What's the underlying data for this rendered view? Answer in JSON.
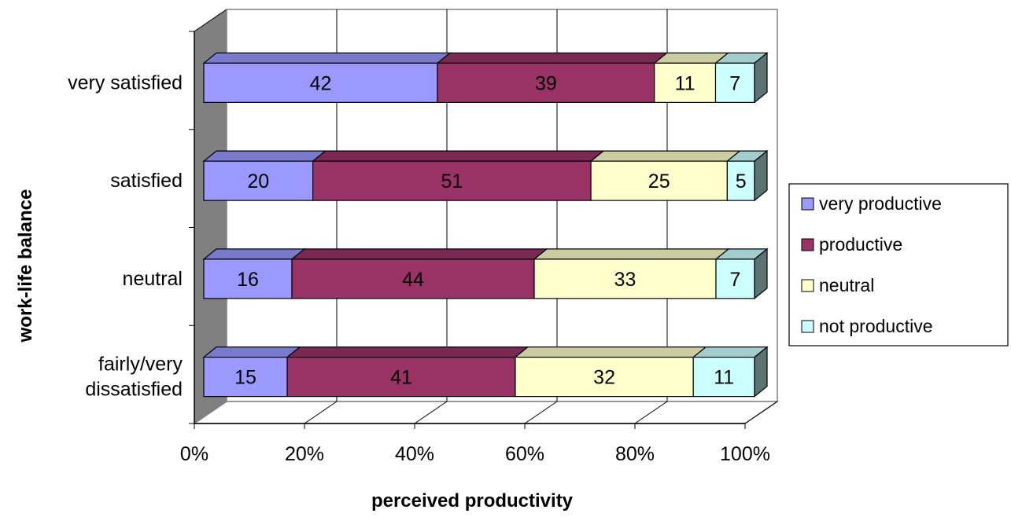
{
  "chart_data": {
    "type": "bar",
    "orientation": "horizontal",
    "stacking": "percent",
    "three_d": true,
    "xlabel": "perceived productivity",
    "ylabel": "work-life balance",
    "xlim": [
      0,
      100
    ],
    "x_ticks": [
      "0%",
      "20%",
      "40%",
      "60%",
      "80%",
      "100%"
    ],
    "categories": [
      [
        "very satisfied"
      ],
      [
        "satisfied"
      ],
      [
        "neutral"
      ],
      [
        "fairly/very",
        "dissatisfied"
      ]
    ],
    "series": [
      {
        "name": "very productive",
        "values": [
          42,
          20,
          16,
          15
        ],
        "color": "#9999ff"
      },
      {
        "name": "productive",
        "values": [
          39,
          51,
          44,
          41
        ],
        "color": "#993366"
      },
      {
        "name": "neutral",
        "values": [
          11,
          25,
          33,
          32
        ],
        "color": "#ffffcc"
      },
      {
        "name": "not productive",
        "values": [
          7,
          5,
          7,
          11
        ],
        "color": "#ccffff"
      }
    ],
    "grid": true,
    "legend_position": "right"
  }
}
